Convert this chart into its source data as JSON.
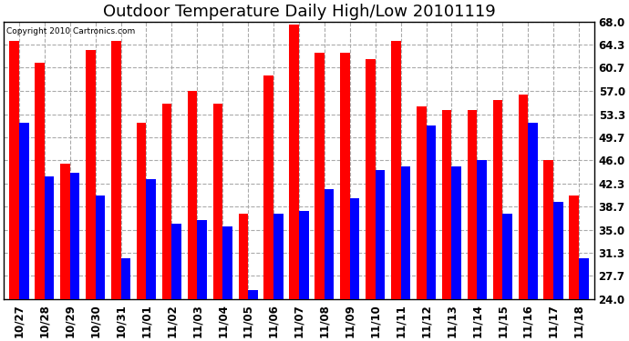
{
  "title": "Outdoor Temperature Daily High/Low 20101119",
  "copyright": "Copyright 2010 Cartronics.com",
  "dates": [
    "10/27",
    "10/28",
    "10/29",
    "10/30",
    "10/31",
    "11/01",
    "11/02",
    "11/03",
    "11/04",
    "11/05",
    "11/06",
    "11/07",
    "11/08",
    "11/09",
    "11/10",
    "11/11",
    "11/12",
    "11/13",
    "11/14",
    "11/15",
    "11/16",
    "11/17",
    "11/18"
  ],
  "highs": [
    65.0,
    61.5,
    45.5,
    63.5,
    65.0,
    52.0,
    55.0,
    57.0,
    55.0,
    37.5,
    59.5,
    67.5,
    63.0,
    63.0,
    62.0,
    65.0,
    54.5,
    54.0,
    54.0,
    55.5,
    56.5,
    46.0,
    40.5
  ],
  "lows": [
    52.0,
    43.5,
    44.0,
    40.5,
    30.5,
    43.0,
    36.0,
    36.5,
    35.5,
    25.5,
    37.5,
    38.0,
    41.5,
    40.0,
    44.5,
    45.0,
    51.5,
    45.0,
    46.0,
    37.5,
    52.0,
    39.5,
    30.5
  ],
  "high_color": "#ff0000",
  "low_color": "#0000ff",
  "bg_color": "#ffffff",
  "plot_bg_color": "#ffffff",
  "grid_color": "#aaaaaa",
  "ymin": 24.0,
  "ymax": 68.0,
  "yticks": [
    24.0,
    27.7,
    31.3,
    35.0,
    38.7,
    42.3,
    46.0,
    49.7,
    53.3,
    57.0,
    60.7,
    64.3,
    68.0
  ],
  "title_fontsize": 13,
  "tick_fontsize": 8.5,
  "bar_width": 0.38
}
